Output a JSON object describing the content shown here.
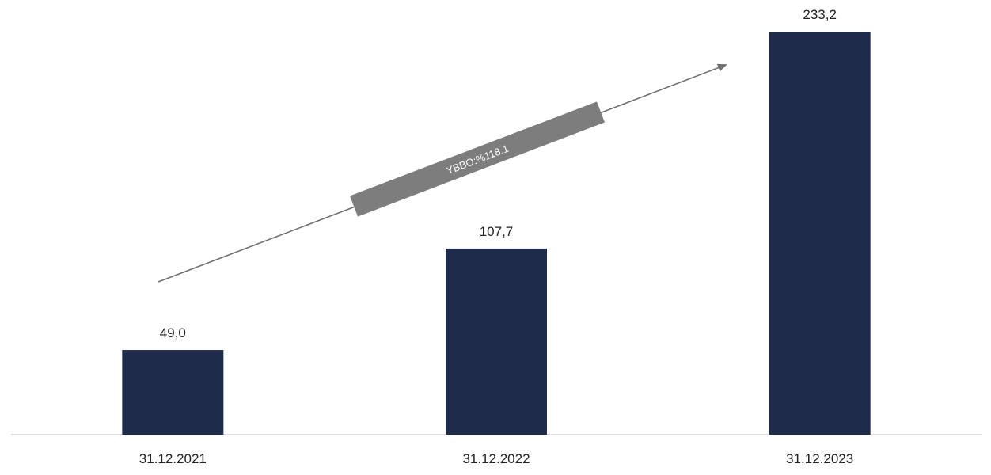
{
  "chart_data": {
    "type": "bar",
    "categories": [
      "31.12.2021",
      "31.12.2022",
      "31.12.2023"
    ],
    "values": [
      49.0,
      107.7,
      233.2
    ],
    "data_labels": [
      "49,0",
      "107,7",
      "233,2"
    ],
    "title": "",
    "xlabel": "",
    "ylabel": "",
    "ylim": [
      0,
      233.2
    ],
    "grid": false,
    "legend": "none",
    "annotation": {
      "text": "YBBO:%118,1",
      "type": "growth-arrow"
    },
    "colors": {
      "bar": "#1e2b4a",
      "baseline": "#d0d3d8",
      "label": "#222222",
      "arrow": "#707070",
      "annotation_box": "#7d7d7d",
      "annotation_text": "#ffffff"
    }
  }
}
